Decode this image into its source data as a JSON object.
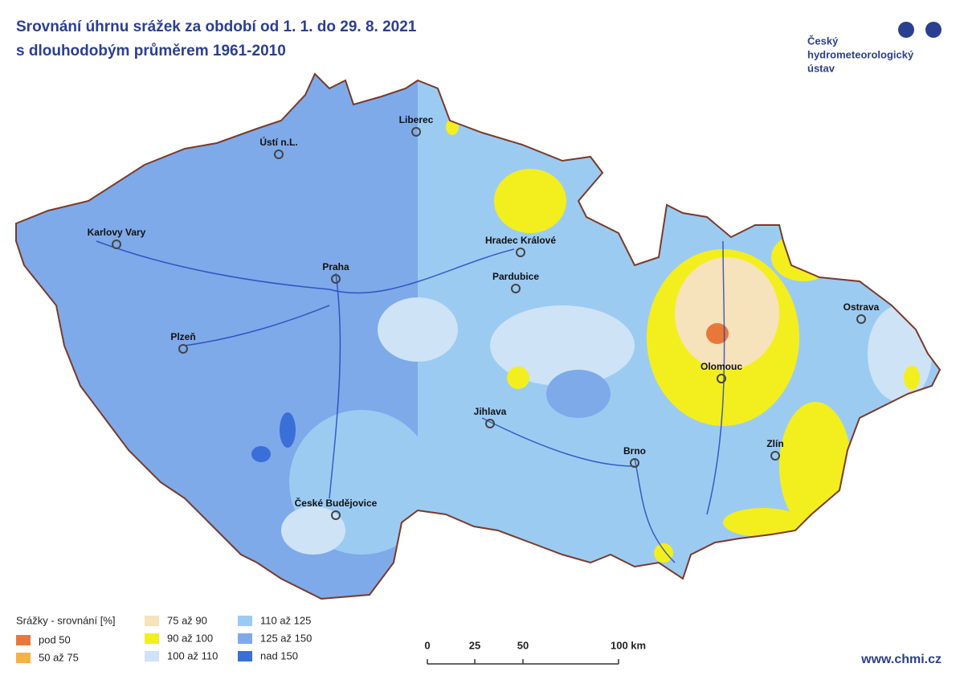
{
  "header": {
    "title_lines": [
      "Srovnání úhrnu srážek za období od 1. 1. do 29. 8. 2021",
      "s dlouhodobým průměrem 1961-2010"
    ]
  },
  "logo": {
    "lines": [
      "Český",
      "hydrometeorologický",
      "ústav"
    ]
  },
  "cities": [
    "Liberec",
    "Ústí n.L.",
    "Karlovy Vary",
    "Praha",
    "Hradec Králové",
    "Pardubice",
    "Plzeň",
    "Olomouc",
    "Ostrava",
    "Jihlava",
    "Brno",
    "Zlín",
    "České Budějovice"
  ],
  "legend": {
    "title": "Srážky - srovnání [%]",
    "items": [
      {
        "label": "pod 50",
        "color": "#e8783a"
      },
      {
        "label": "50 až 75",
        "color": "#f5b440"
      },
      {
        "label": "75 až 90",
        "color": "#f6e2bb"
      },
      {
        "label": "90 až 100",
        "color": "#f3ef1e"
      },
      {
        "label": "100 až 110",
        "color": "#cfe3f6"
      },
      {
        "label": "110 až 125",
        "color": "#9ccbf2"
      },
      {
        "label": "125 až 150",
        "color": "#7eaae9"
      },
      {
        "label": "nad 150",
        "color": "#3a6fd8"
      }
    ]
  },
  "scale": {
    "labels": [
      "0",
      "25",
      "50",
      "100 km"
    ]
  },
  "footer": {
    "url": "www.chmi.cz"
  }
}
